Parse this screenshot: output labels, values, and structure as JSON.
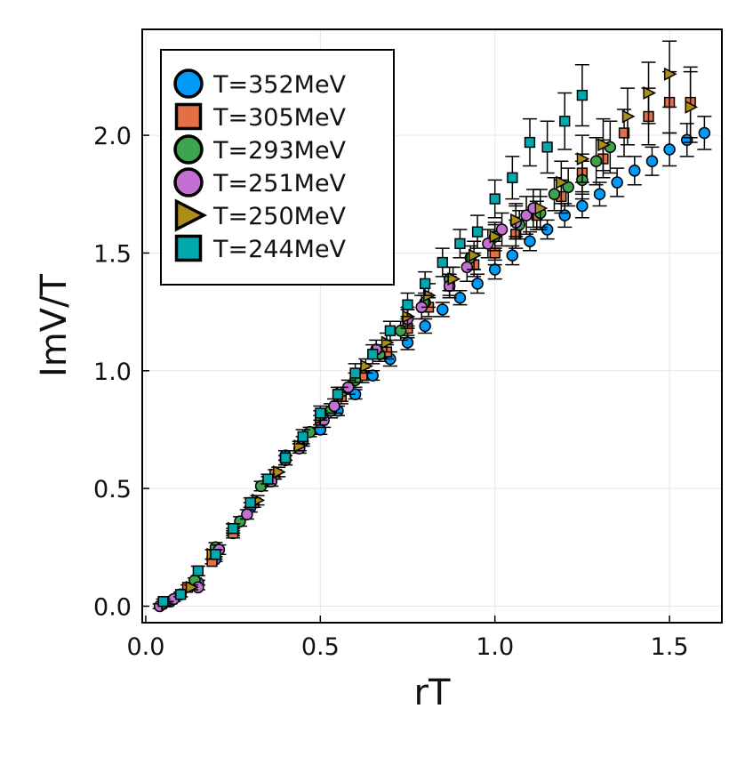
{
  "chart_data": {
    "type": "scatter",
    "title": "",
    "xlabel": "rT",
    "ylabel": "ImV/T",
    "xlim": [
      -0.01,
      1.65
    ],
    "ylim": [
      -0.07,
      2.45
    ],
    "xticks": [
      0.0,
      0.5,
      1.0,
      1.5
    ],
    "xtick_labels": [
      "0.0",
      "0.5",
      "1.0",
      "1.5"
    ],
    "yticks": [
      0.0,
      0.5,
      1.0,
      1.5,
      2.0
    ],
    "ytick_labels": [
      "0.0",
      "0.5",
      "1.0",
      "1.5",
      "2.0"
    ],
    "grid": true,
    "legend_position": "top-left",
    "series": [
      {
        "name": "T=352MeV",
        "marker": "circle",
        "color": "#009AFA",
        "points": [
          [
            0.05,
            0.01,
            0.01
          ],
          [
            0.1,
            0.05,
            0.01
          ],
          [
            0.15,
            0.1,
            0.01
          ],
          [
            0.2,
            0.2,
            0.01
          ],
          [
            0.25,
            0.31,
            0.01
          ],
          [
            0.3,
            0.42,
            0.02
          ],
          [
            0.35,
            0.53,
            0.02
          ],
          [
            0.4,
            0.64,
            0.02
          ],
          [
            0.45,
            0.7,
            0.02
          ],
          [
            0.5,
            0.75,
            0.02
          ],
          [
            0.55,
            0.83,
            0.02
          ],
          [
            0.6,
            0.9,
            0.02
          ],
          [
            0.65,
            0.98,
            0.02
          ],
          [
            0.7,
            1.05,
            0.03
          ],
          [
            0.75,
            1.12,
            0.03
          ],
          [
            0.8,
            1.19,
            0.03
          ],
          [
            0.85,
            1.26,
            0.03
          ],
          [
            0.9,
            1.31,
            0.03
          ],
          [
            0.95,
            1.37,
            0.04
          ],
          [
            1.0,
            1.43,
            0.04
          ],
          [
            1.05,
            1.49,
            0.04
          ],
          [
            1.1,
            1.55,
            0.04
          ],
          [
            1.15,
            1.6,
            0.04
          ],
          [
            1.2,
            1.66,
            0.05
          ],
          [
            1.25,
            1.7,
            0.05
          ],
          [
            1.3,
            1.75,
            0.05
          ],
          [
            1.35,
            1.8,
            0.06
          ],
          [
            1.4,
            1.85,
            0.06
          ],
          [
            1.45,
            1.89,
            0.06
          ],
          [
            1.5,
            1.94,
            0.07
          ],
          [
            1.55,
            1.98,
            0.07
          ],
          [
            1.6,
            2.01,
            0.07
          ]
        ]
      },
      {
        "name": "T=305MeV",
        "marker": "square",
        "color": "#E26F46",
        "points": [
          [
            0.06,
            0.02,
            0.01
          ],
          [
            0.12,
            0.08,
            0.01
          ],
          [
            0.19,
            0.19,
            0.01
          ],
          [
            0.25,
            0.31,
            0.02
          ],
          [
            0.31,
            0.44,
            0.02
          ],
          [
            0.37,
            0.56,
            0.02
          ],
          [
            0.44,
            0.68,
            0.02
          ],
          [
            0.5,
            0.79,
            0.02
          ],
          [
            0.56,
            0.89,
            0.03
          ],
          [
            0.62,
            0.98,
            0.03
          ],
          [
            0.69,
            1.08,
            0.03
          ],
          [
            0.75,
            1.18,
            0.04
          ],
          [
            0.81,
            1.27,
            0.04
          ],
          [
            0.87,
            1.36,
            0.04
          ],
          [
            0.94,
            1.45,
            0.05
          ],
          [
            1.0,
            1.5,
            0.05
          ],
          [
            1.06,
            1.58,
            0.06
          ],
          [
            1.12,
            1.66,
            0.06
          ],
          [
            1.19,
            1.74,
            0.07
          ],
          [
            1.25,
            1.84,
            0.08
          ],
          [
            1.31,
            1.9,
            0.08
          ],
          [
            1.37,
            2.01,
            0.1
          ],
          [
            1.44,
            2.08,
            0.12
          ],
          [
            1.5,
            2.14,
            0.13
          ],
          [
            1.56,
            2.14,
            0.15
          ]
        ]
      },
      {
        "name": "T=293MeV",
        "marker": "circle",
        "color": "#3DA44D",
        "points": [
          [
            0.07,
            0.02,
            0.01
          ],
          [
            0.14,
            0.11,
            0.01
          ],
          [
            0.2,
            0.25,
            0.02
          ],
          [
            0.27,
            0.36,
            0.02
          ],
          [
            0.33,
            0.51,
            0.02
          ],
          [
            0.4,
            0.62,
            0.02
          ],
          [
            0.47,
            0.74,
            0.02
          ],
          [
            0.53,
            0.83,
            0.03
          ],
          [
            0.6,
            0.96,
            0.03
          ],
          [
            0.67,
            1.07,
            0.03
          ],
          [
            0.73,
            1.17,
            0.04
          ],
          [
            0.8,
            1.29,
            0.04
          ],
          [
            0.87,
            1.39,
            0.05
          ],
          [
            0.93,
            1.48,
            0.05
          ],
          [
            1.0,
            1.57,
            0.05
          ],
          [
            1.07,
            1.62,
            0.06
          ],
          [
            1.13,
            1.67,
            0.07
          ],
          [
            1.17,
            1.75,
            0.07
          ],
          [
            1.21,
            1.78,
            0.08
          ],
          [
            1.25,
            1.81,
            0.08
          ],
          [
            1.29,
            1.89,
            0.1
          ],
          [
            1.33,
            1.95,
            0.11
          ]
        ]
      },
      {
        "name": "T=251MeV",
        "marker": "circle",
        "color": "#C271D2",
        "points": [
          [
            0.04,
            0.0,
            0.01
          ],
          [
            0.08,
            0.03,
            0.01
          ],
          [
            0.15,
            0.08,
            0.01
          ],
          [
            0.21,
            0.24,
            0.02
          ],
          [
            0.29,
            0.39,
            0.02
          ],
          [
            0.36,
            0.53,
            0.02
          ],
          [
            0.44,
            0.67,
            0.02
          ],
          [
            0.51,
            0.79,
            0.03
          ],
          [
            0.54,
            0.85,
            0.03
          ],
          [
            0.58,
            0.93,
            0.03
          ],
          [
            0.66,
            1.09,
            0.04
          ],
          [
            0.75,
            1.22,
            0.04
          ],
          [
            0.79,
            1.27,
            0.05
          ],
          [
            0.87,
            1.36,
            0.05
          ],
          [
            0.92,
            1.44,
            0.06
          ],
          [
            0.98,
            1.54,
            0.06
          ],
          [
            1.02,
            1.6,
            0.07
          ],
          [
            1.06,
            1.63,
            0.07
          ],
          [
            1.09,
            1.66,
            0.08
          ],
          [
            1.11,
            1.69,
            0.08
          ]
        ]
      },
      {
        "name": "T=250MeV",
        "marker": "triangle-right",
        "color": "#AC8D18",
        "points": [
          [
            0.06,
            0.01,
            0.01
          ],
          [
            0.13,
            0.08,
            0.01
          ],
          [
            0.19,
            0.22,
            0.02
          ],
          [
            0.25,
            0.33,
            0.02
          ],
          [
            0.32,
            0.45,
            0.02
          ],
          [
            0.38,
            0.57,
            0.02
          ],
          [
            0.44,
            0.68,
            0.02
          ],
          [
            0.5,
            0.8,
            0.03
          ],
          [
            0.56,
            0.9,
            0.03
          ],
          [
            0.63,
            1.02,
            0.03
          ],
          [
            0.69,
            1.12,
            0.04
          ],
          [
            0.75,
            1.23,
            0.04
          ],
          [
            0.81,
            1.32,
            0.05
          ],
          [
            0.88,
            1.39,
            0.05
          ],
          [
            0.94,
            1.49,
            0.06
          ],
          [
            1.0,
            1.57,
            0.06
          ],
          [
            1.06,
            1.64,
            0.07
          ],
          [
            1.13,
            1.69,
            0.08
          ],
          [
            1.19,
            1.8,
            0.09
          ],
          [
            1.25,
            1.9,
            0.1
          ],
          [
            1.31,
            1.96,
            0.11
          ],
          [
            1.38,
            2.08,
            0.12
          ],
          [
            1.44,
            2.18,
            0.13
          ],
          [
            1.5,
            2.26,
            0.14
          ],
          [
            1.56,
            2.12,
            0.15
          ]
        ]
      },
      {
        "name": "T=244MeV",
        "marker": "square",
        "color": "#00A9AD",
        "points": [
          [
            0.05,
            0.02,
            0.01
          ],
          [
            0.1,
            0.05,
            0.01
          ],
          [
            0.15,
            0.15,
            0.02
          ],
          [
            0.2,
            0.22,
            0.02
          ],
          [
            0.25,
            0.33,
            0.02
          ],
          [
            0.3,
            0.44,
            0.02
          ],
          [
            0.35,
            0.54,
            0.02
          ],
          [
            0.4,
            0.63,
            0.03
          ],
          [
            0.45,
            0.72,
            0.03
          ],
          [
            0.5,
            0.82,
            0.03
          ],
          [
            0.55,
            0.9,
            0.03
          ],
          [
            0.6,
            0.99,
            0.04
          ],
          [
            0.65,
            1.07,
            0.04
          ],
          [
            0.7,
            1.17,
            0.04
          ],
          [
            0.75,
            1.28,
            0.05
          ],
          [
            0.8,
            1.37,
            0.05
          ],
          [
            0.85,
            1.46,
            0.06
          ],
          [
            0.9,
            1.54,
            0.06
          ],
          [
            0.95,
            1.59,
            0.07
          ],
          [
            1.0,
            1.73,
            0.08
          ],
          [
            1.05,
            1.82,
            0.09
          ],
          [
            1.1,
            1.97,
            0.1
          ],
          [
            1.15,
            1.95,
            0.11
          ],
          [
            1.2,
            2.06,
            0.12
          ],
          [
            1.25,
            2.17,
            0.13
          ]
        ]
      }
    ]
  }
}
